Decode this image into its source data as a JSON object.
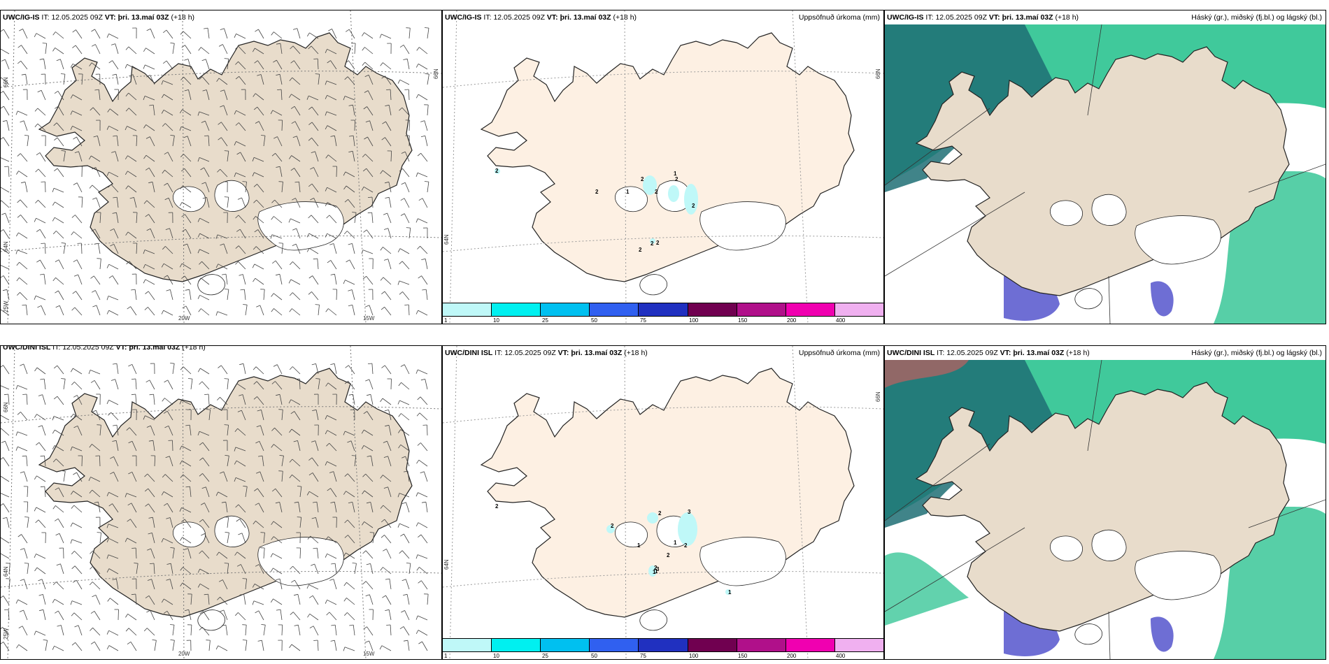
{
  "panels": [
    {
      "model": "UWC/IG-IS",
      "it_label": "IT:",
      "it_value": "12.05.2025 09Z",
      "vt_label": "VT:",
      "vt_value": "þri. 13.maí 03Z",
      "lead": "(+18 h)",
      "field": "",
      "axis_labels": {
        "lat66": "66N",
        "lat64": "64N",
        "lon25": "25W",
        "lon20": "20W",
        "lon15": "15W"
      }
    },
    {
      "model": "UWC/IG-IS",
      "it_label": "IT:",
      "it_value": "12.05.2025 09Z",
      "vt_label": "VT:",
      "vt_value": "þri. 13.maí 03Z",
      "lead": "(+18 h)",
      "field": "Uppsöfnuð úrkoma (mm)",
      "axis_labels": {
        "lat66": "66N",
        "lat64": "64N"
      },
      "precip_labels": [
        "2",
        "2",
        "2",
        "2",
        "1",
        "2",
        "2",
        "2",
        "2",
        "1",
        "2"
      ]
    },
    {
      "model": "UWC/IG-IS",
      "it_label": "IT:",
      "it_value": "12.05.2025 09Z",
      "vt_label": "VT:",
      "vt_value": "þri. 13.maí 03Z",
      "lead": "(+18 h)",
      "field": "Háský (gr.), miðský (fj.bl.) og lágský (bl.)"
    },
    {
      "model": "UWC/DINI ISL",
      "it_label": "IT:",
      "it_value": "12.05.2025 09Z",
      "vt_label": "VT:",
      "vt_value": "þri. 13.maí 03Z",
      "lead": "(+18 h)",
      "field": "",
      "axis_labels": {
        "lat66": "66N",
        "lat64": "64N",
        "lon25": "25W",
        "lon20": "20W",
        "lon15": "15W"
      }
    },
    {
      "model": "UWC/DINI ISL",
      "it_label": "IT:",
      "it_value": "12.05.2025 09Z",
      "vt_label": "VT:",
      "vt_value": "þri. 13.maí 03Z",
      "lead": "(+18 h)",
      "field": "Uppsöfnuð úrkoma (mm)",
      "axis_labels": {
        "lat66": "66N",
        "lat64": "64N"
      },
      "precip_labels": [
        "2",
        "2",
        "2",
        "3",
        "2",
        "1",
        "1",
        "1",
        "1",
        "3",
        "2",
        "2",
        "1"
      ]
    },
    {
      "model": "UWC/DINI ISL",
      "it_label": "IT:",
      "it_value": "12.05.2025 09Z",
      "vt_label": "VT:",
      "vt_value": "þri. 13.maí 03Z",
      "lead": "(+18 h)",
      "field": "Háský (gr.), miðský (fj.bl.) og lágský (bl.)"
    }
  ],
  "colorbar": {
    "ticks": [
      "1",
      "10",
      "25",
      "50",
      "75",
      "100",
      "150",
      "200",
      "400"
    ],
    "colors": [
      "#bff8f8",
      "#00f0f0",
      "#00c0f0",
      "#3060f0",
      "#2030c0",
      "#700050",
      "#b0108a",
      "#f000b0",
      "#f0b0f0"
    ]
  },
  "colors": {
    "land": "#e8dccb",
    "land_precip": "#fdf0e3",
    "low_cloud": "#5555cc",
    "mid_cloud": "#1fbf8a",
    "high_cloud": "#999999",
    "coast": "#222222"
  }
}
